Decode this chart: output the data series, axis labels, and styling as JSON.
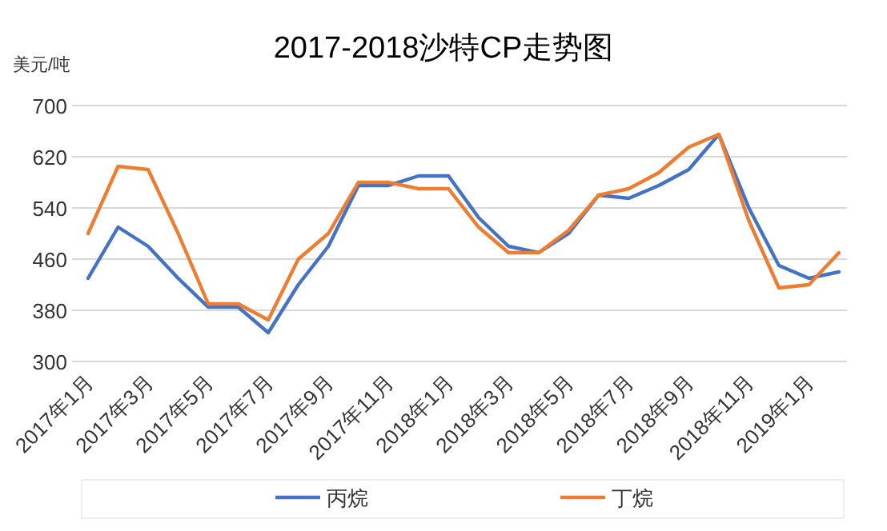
{
  "chart_data": {
    "type": "line",
    "title": "2017-2018沙特CP走势图",
    "ylabel": "美元/吨",
    "categories": [
      "2017年1月",
      null,
      "2017年3月",
      null,
      "2017年5月",
      null,
      "2017年7月",
      null,
      "2017年9月",
      null,
      "2017年11月",
      null,
      "2018年1月",
      null,
      "2018年3月",
      null,
      "2018年5月",
      null,
      "2018年7月",
      null,
      "2018年9月",
      null,
      "2018年11月",
      null,
      "2019年1月",
      null
    ],
    "series": [
      {
        "name": "丙烷",
        "color": "#4472c4",
        "values": [
          430,
          510,
          480,
          430,
          385,
          385,
          345,
          420,
          480,
          575,
          575,
          590,
          590,
          525,
          480,
          470,
          500,
          560,
          555,
          575,
          600,
          655,
          540,
          450,
          430,
          440
        ]
      },
      {
        "name": "丁烷",
        "color": "#ed7d31",
        "values": [
          500,
          605,
          600,
          500,
          390,
          390,
          365,
          460,
          500,
          580,
          580,
          570,
          570,
          510,
          470,
          470,
          505,
          560,
          570,
          595,
          635,
          655,
          520,
          415,
          420,
          470
        ]
      }
    ],
    "ylim": [
      300,
      700
    ],
    "yticks": [
      300,
      380,
      460,
      540,
      620,
      700
    ],
    "grid": "y",
    "legend": "bottom",
    "marker": "none",
    "line_style": "solid"
  }
}
